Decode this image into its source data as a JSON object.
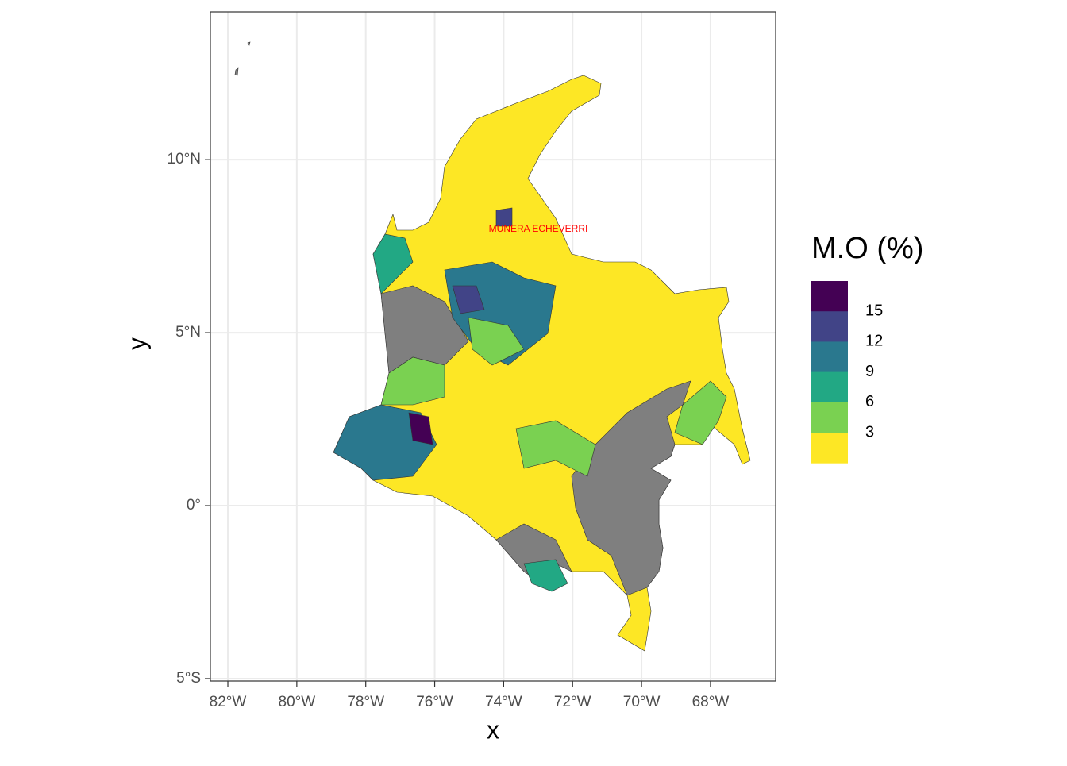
{
  "chart_data": {
    "type": "map",
    "xlabel": "x",
    "ylabel": "y",
    "xlim": [
      -82.507,
      -66.11
    ],
    "ylim": [
      -5.07,
      14.27
    ],
    "xticks": [
      {
        "value": -82,
        "label": "82°W"
      },
      {
        "value": -80,
        "label": "80°W"
      },
      {
        "value": -78,
        "label": "78°W"
      },
      {
        "value": -76,
        "label": "76°W"
      },
      {
        "value": -74,
        "label": "74°W"
      },
      {
        "value": -72,
        "label": "72°W"
      },
      {
        "value": -70,
        "label": "70°W"
      },
      {
        "value": -68,
        "label": "68°W"
      }
    ],
    "yticks": [
      {
        "value": -5,
        "label": "5°S"
      },
      {
        "value": 0,
        "label": "0°"
      },
      {
        "value": 5,
        "label": "5°N"
      },
      {
        "value": 10,
        "label": "10°N"
      }
    ],
    "grid": true,
    "annotation": "MUNERA ECHEVERRI",
    "annotation_color": "#ff0000",
    "legend": {
      "title": "M.O (%)",
      "breaks": [
        15,
        12,
        9,
        6,
        3
      ],
      "colors": [
        "#440154",
        "#414487",
        "#2a788e",
        "#22a884",
        "#7ad151",
        "#fde725"
      ]
    },
    "na_color": "#7f7f7f"
  }
}
